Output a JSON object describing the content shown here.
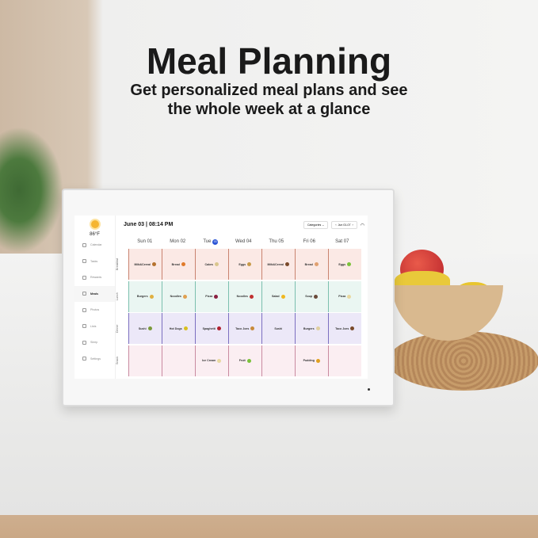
{
  "headline": {
    "title": "Meal Planning",
    "subtitle_line1": "Get personalized meal plans and see",
    "subtitle_line2": "the whole week at a glance"
  },
  "app": {
    "weather": {
      "icon": "sun-icon",
      "temperature": "86°F"
    },
    "sidebar": {
      "items": [
        {
          "label": "Calendar",
          "icon": "calendar-icon"
        },
        {
          "label": "Tasks",
          "icon": "tasks-icon"
        },
        {
          "label": "Rewards",
          "icon": "rewards-icon"
        },
        {
          "label": "Meals",
          "icon": "meals-icon",
          "active": true
        },
        {
          "label": "Photos",
          "icon": "photos-icon"
        },
        {
          "label": "Lists",
          "icon": "lists-icon"
        },
        {
          "label": "Sleep",
          "icon": "sleep-icon"
        },
        {
          "label": "Settings",
          "icon": "settings-icon"
        }
      ]
    },
    "header": {
      "date": "June 03",
      "time": "08:14 PM",
      "categories_label": "Categories",
      "range": "Jun 01-07",
      "prev": "‹",
      "next": "›"
    },
    "days": [
      {
        "label": "Sun 01"
      },
      {
        "label": "Mon 02"
      },
      {
        "label": "Tue",
        "badge": "03"
      },
      {
        "label": "Wed 04"
      },
      {
        "label": "Thu 05"
      },
      {
        "label": "Fri 06"
      },
      {
        "label": "Sat 07"
      }
    ],
    "rows": [
      {
        "label": "Breakfast",
        "bg": "#fbe9e5",
        "accent": "#c9836f",
        "cells": [
          {
            "meal": "Milk&Cereal",
            "c": "#b5722e"
          },
          {
            "meal": "Bread",
            "c": "#e07a2a"
          },
          {
            "meal": "Cakes",
            "c": "#d9c68e"
          },
          {
            "meal": "Eggs",
            "c": "#c79a4a"
          },
          {
            "meal": "Milk&Cereal",
            "c": "#7a4a2a"
          },
          {
            "meal": "Bread",
            "c": "#e0a070"
          },
          {
            "meal": "Eggs",
            "c": "#7ac23a"
          }
        ]
      },
      {
        "label": "Lunch",
        "bg": "#eaf6f2",
        "accent": "#7bbfae",
        "cells": [
          {
            "meal": "Burgers",
            "c": "#e0b040"
          },
          {
            "meal": "Noodles",
            "c": "#e0a050"
          },
          {
            "meal": "Pizza",
            "c": "#8a2040"
          },
          {
            "meal": "Noodles",
            "c": "#c03030"
          },
          {
            "meal": "Salad",
            "c": "#f0b820"
          },
          {
            "meal": "Soup",
            "c": "#6a4a3a"
          },
          {
            "meal": "Pizza",
            "c": "#e8d8a0"
          }
        ]
      },
      {
        "label": "Dinner",
        "bg": "#ece8f8",
        "accent": "#7b6fc0",
        "cells": [
          {
            "meal": "Sushi",
            "c": "#7a9a3a"
          },
          {
            "meal": "Hot Dogs",
            "c": "#d8c020"
          },
          {
            "meal": "Spaghetti",
            "c": "#b02030"
          },
          {
            "meal": "Taco Joes",
            "c": "#c88a3a"
          },
          {
            "meal": "Sushi",
            "c": ""
          },
          {
            "meal": "Burgers",
            "c": "#e0d0a0"
          },
          {
            "meal": "Taco Joes",
            "c": "#7a4a2a"
          }
        ]
      },
      {
        "label": "Snack",
        "bg": "#fbeef2",
        "accent": "#c98aa0",
        "cells": [
          {
            "meal": "",
            "c": ""
          },
          {
            "meal": "",
            "c": ""
          },
          {
            "meal": "Ice Cream",
            "c": "#e8d8a0"
          },
          {
            "meal": "Fruit",
            "c": "#7ac23a"
          },
          {
            "meal": "",
            "c": ""
          },
          {
            "meal": "Pudding",
            "c": "#e0a020"
          },
          {
            "meal": "",
            "c": ""
          }
        ]
      }
    ]
  }
}
